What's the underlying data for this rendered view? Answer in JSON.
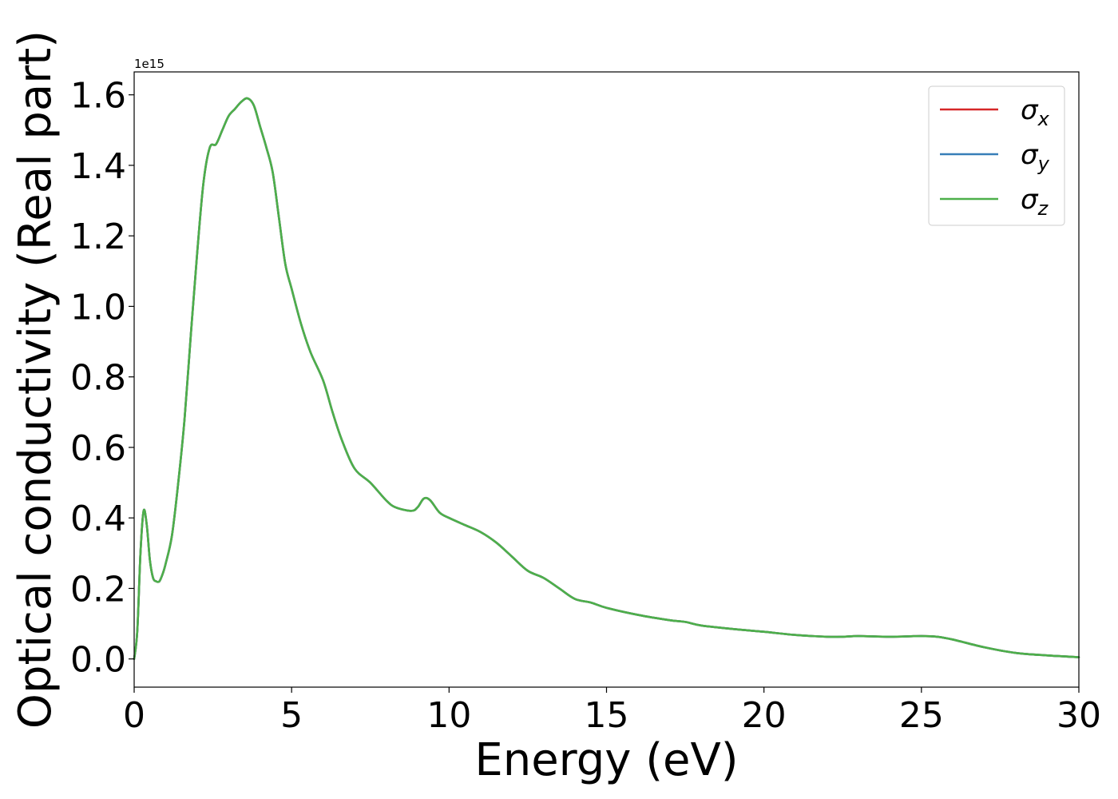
{
  "chart_data": {
    "type": "line",
    "title": "",
    "xlabel": "Energy (eV)",
    "ylabel": "Optical conductivity (Real part)",
    "y_offset_text": "1e15",
    "xlim": [
      0,
      30
    ],
    "ylim": [
      -0.08,
      1.665
    ],
    "xticks": [
      0,
      5,
      10,
      15,
      20,
      25,
      30
    ],
    "xtick_labels": [
      "0",
      "5",
      "10",
      "15",
      "20",
      "25",
      "30"
    ],
    "yticks": [
      0.0,
      0.2,
      0.4,
      0.6,
      0.8,
      1.0,
      1.2,
      1.4,
      1.6
    ],
    "ytick_labels": [
      "0.0",
      "0.2",
      "0.4",
      "0.6",
      "0.8",
      "1.0",
      "1.2",
      "1.4",
      "1.6"
    ],
    "grid": false,
    "legend_position": "top-right",
    "series": [
      {
        "name": "σ_x",
        "label_main": "σ",
        "label_sub": "x",
        "color": "#d62728",
        "x": [
          0,
          0.1,
          0.2,
          0.3,
          0.4,
          0.5,
          0.6,
          0.7,
          0.8,
          0.9,
          1.0,
          1.2,
          1.4,
          1.6,
          1.8,
          2.0,
          2.2,
          2.4,
          2.6,
          2.8,
          3.0,
          3.2,
          3.4,
          3.6,
          3.8,
          4.0,
          4.2,
          4.4,
          4.6,
          4.8,
          5.0,
          5.3,
          5.6,
          6.0,
          6.3,
          6.6,
          7.0,
          7.5,
          8.0,
          8.3,
          8.8,
          9.0,
          9.2,
          9.4,
          9.7,
          10.0,
          10.5,
          11.0,
          11.5,
          12.0,
          12.5,
          13.0,
          13.5,
          14.0,
          14.5,
          15.0,
          16.0,
          17.0,
          17.5,
          18.0,
          19.0,
          20.0,
          21.0,
          22.0,
          22.5,
          23.0,
          24.0,
          25.0,
          25.5,
          26.0,
          27.0,
          28.0,
          29.0,
          30.0
        ],
        "values": [
          0.0,
          0.08,
          0.3,
          0.42,
          0.38,
          0.28,
          0.23,
          0.22,
          0.22,
          0.24,
          0.27,
          0.35,
          0.5,
          0.68,
          0.92,
          1.15,
          1.35,
          1.45,
          1.46,
          1.5,
          1.54,
          1.56,
          1.58,
          1.59,
          1.57,
          1.51,
          1.45,
          1.38,
          1.25,
          1.12,
          1.05,
          0.95,
          0.87,
          0.79,
          0.7,
          0.62,
          0.54,
          0.5,
          0.45,
          0.43,
          0.42,
          0.43,
          0.455,
          0.45,
          0.415,
          0.4,
          0.38,
          0.36,
          0.33,
          0.29,
          0.25,
          0.23,
          0.2,
          0.17,
          0.16,
          0.145,
          0.125,
          0.11,
          0.105,
          0.095,
          0.085,
          0.077,
          0.068,
          0.063,
          0.063,
          0.065,
          0.063,
          0.065,
          0.063,
          0.055,
          0.033,
          0.017,
          0.01,
          0.005
        ]
      },
      {
        "name": "σ_y",
        "label_main": "σ",
        "label_sub": "y",
        "color": "#377eb8",
        "x": [
          0,
          0.1,
          0.2,
          0.3,
          0.4,
          0.5,
          0.6,
          0.7,
          0.8,
          0.9,
          1.0,
          1.2,
          1.4,
          1.6,
          1.8,
          2.0,
          2.2,
          2.4,
          2.6,
          2.8,
          3.0,
          3.2,
          3.4,
          3.6,
          3.8,
          4.0,
          4.2,
          4.4,
          4.6,
          4.8,
          5.0,
          5.3,
          5.6,
          6.0,
          6.3,
          6.6,
          7.0,
          7.5,
          8.0,
          8.3,
          8.8,
          9.0,
          9.2,
          9.4,
          9.7,
          10.0,
          10.5,
          11.0,
          11.5,
          12.0,
          12.5,
          13.0,
          13.5,
          14.0,
          14.5,
          15.0,
          16.0,
          17.0,
          17.5,
          18.0,
          19.0,
          20.0,
          21.0,
          22.0,
          22.5,
          23.0,
          24.0,
          25.0,
          25.5,
          26.0,
          27.0,
          28.0,
          29.0,
          30.0
        ],
        "values": [
          0.0,
          0.08,
          0.3,
          0.42,
          0.38,
          0.28,
          0.23,
          0.22,
          0.22,
          0.24,
          0.27,
          0.35,
          0.5,
          0.68,
          0.92,
          1.15,
          1.35,
          1.45,
          1.46,
          1.5,
          1.54,
          1.56,
          1.58,
          1.59,
          1.57,
          1.51,
          1.45,
          1.38,
          1.25,
          1.12,
          1.05,
          0.95,
          0.87,
          0.79,
          0.7,
          0.62,
          0.54,
          0.5,
          0.45,
          0.43,
          0.42,
          0.43,
          0.455,
          0.45,
          0.415,
          0.4,
          0.38,
          0.36,
          0.33,
          0.29,
          0.25,
          0.23,
          0.2,
          0.17,
          0.16,
          0.145,
          0.125,
          0.11,
          0.105,
          0.095,
          0.085,
          0.077,
          0.068,
          0.063,
          0.063,
          0.065,
          0.063,
          0.065,
          0.063,
          0.055,
          0.033,
          0.017,
          0.01,
          0.005
        ]
      },
      {
        "name": "σ_z",
        "label_main": "σ",
        "label_sub": "z",
        "color": "#4daf4a",
        "x": [
          0,
          0.1,
          0.2,
          0.3,
          0.4,
          0.5,
          0.6,
          0.7,
          0.8,
          0.9,
          1.0,
          1.2,
          1.4,
          1.6,
          1.8,
          2.0,
          2.2,
          2.4,
          2.6,
          2.8,
          3.0,
          3.2,
          3.4,
          3.6,
          3.8,
          4.0,
          4.2,
          4.4,
          4.6,
          4.8,
          5.0,
          5.3,
          5.6,
          6.0,
          6.3,
          6.6,
          7.0,
          7.5,
          8.0,
          8.3,
          8.8,
          9.0,
          9.2,
          9.4,
          9.7,
          10.0,
          10.5,
          11.0,
          11.5,
          12.0,
          12.5,
          13.0,
          13.5,
          14.0,
          14.5,
          15.0,
          16.0,
          17.0,
          17.5,
          18.0,
          19.0,
          20.0,
          21.0,
          22.0,
          22.5,
          23.0,
          24.0,
          25.0,
          25.5,
          26.0,
          27.0,
          28.0,
          29.0,
          30.0
        ],
        "values": [
          0.0,
          0.08,
          0.3,
          0.42,
          0.38,
          0.28,
          0.23,
          0.22,
          0.22,
          0.24,
          0.27,
          0.35,
          0.5,
          0.68,
          0.92,
          1.15,
          1.35,
          1.45,
          1.46,
          1.5,
          1.54,
          1.56,
          1.58,
          1.59,
          1.57,
          1.51,
          1.45,
          1.38,
          1.25,
          1.12,
          1.05,
          0.95,
          0.87,
          0.79,
          0.7,
          0.62,
          0.54,
          0.5,
          0.45,
          0.43,
          0.42,
          0.43,
          0.455,
          0.45,
          0.415,
          0.4,
          0.38,
          0.36,
          0.33,
          0.29,
          0.25,
          0.23,
          0.2,
          0.17,
          0.16,
          0.145,
          0.125,
          0.11,
          0.105,
          0.095,
          0.085,
          0.077,
          0.068,
          0.063,
          0.063,
          0.065,
          0.063,
          0.065,
          0.063,
          0.055,
          0.033,
          0.017,
          0.01,
          0.005
        ]
      }
    ]
  }
}
